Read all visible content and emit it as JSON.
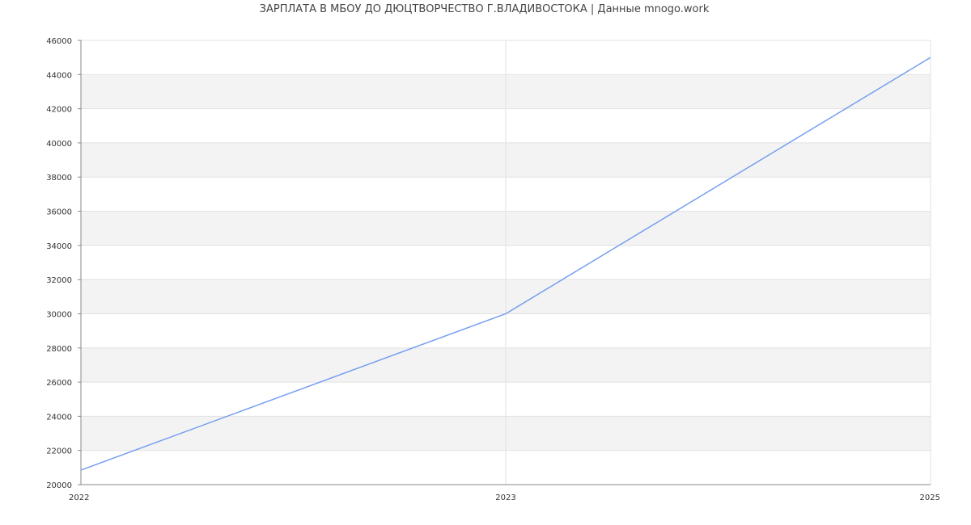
{
  "chart_data": {
    "type": "line",
    "title": "ЗАРПЛАТА В МБОУ ДО ДЮЦТВОРЧЕСТВО Г.ВЛАДИВОСТОКА | Данные mnogo.work",
    "categories": [
      "2022",
      "2023",
      "2025"
    ],
    "series": [
      {
        "values": [
          20850,
          30000,
          45000
        ],
        "color": "#779ff0"
      }
    ],
    "xlabel": "",
    "ylabel": "",
    "ylim": [
      20000,
      46000
    ],
    "yticks": [
      20000,
      22000,
      24000,
      26000,
      28000,
      30000,
      32000,
      34000,
      36000,
      38000,
      40000,
      42000,
      44000,
      46000
    ],
    "grid": true,
    "band_color": "#f3f3f3",
    "legend": "none"
  }
}
